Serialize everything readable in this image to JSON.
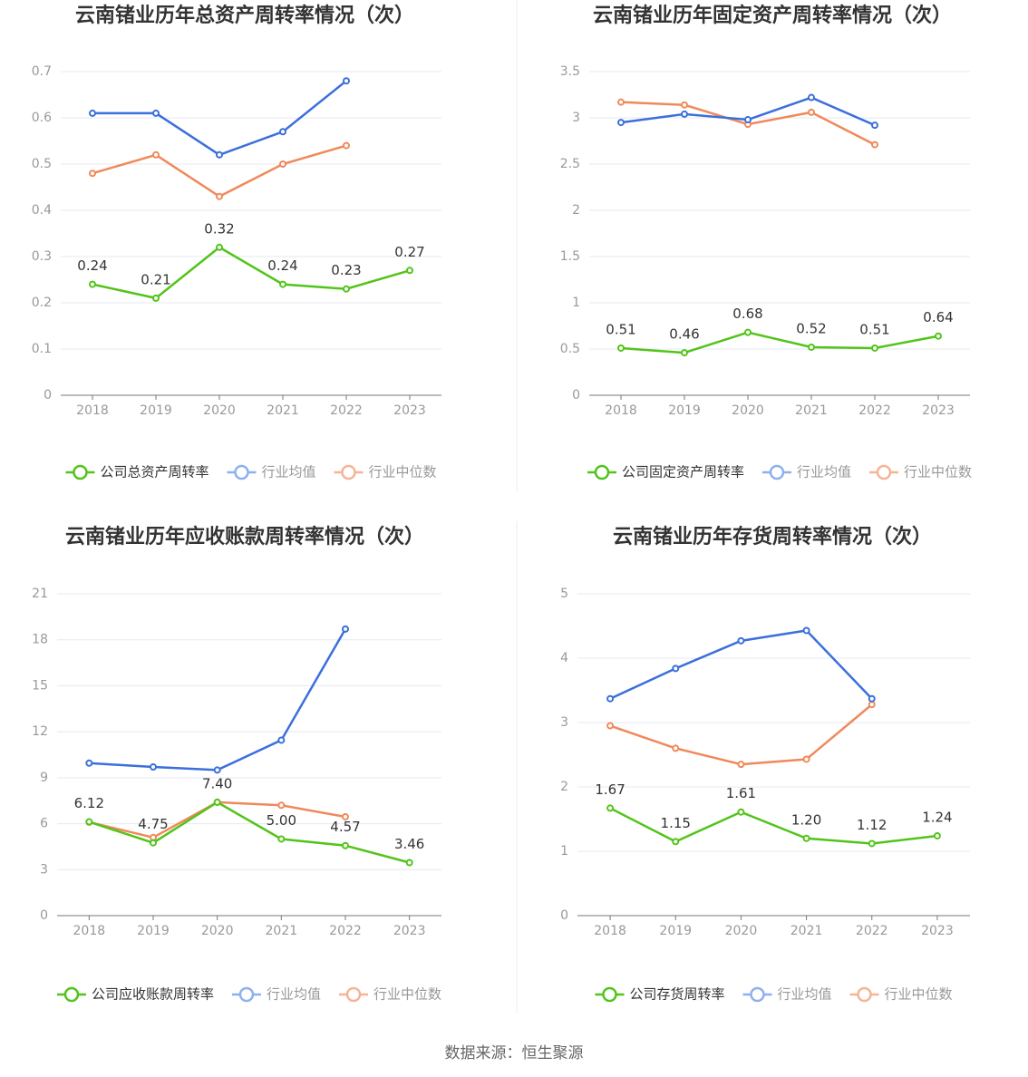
{
  "chart_data": [
    {
      "type": "line",
      "title": "云南锗业历年总资产周转率情况（次）",
      "categories": [
        "2018",
        "2019",
        "2020",
        "2021",
        "2022",
        "2023"
      ],
      "ylim": [
        0,
        0.7
      ],
      "yticks": [
        0,
        0.1,
        0.2,
        0.3,
        0.4,
        0.5,
        0.6,
        0.7
      ],
      "grid": true,
      "series": [
        {
          "name": "公司总资产周转率",
          "color": "#52c41a",
          "values": [
            0.24,
            0.21,
            0.32,
            0.24,
            0.23,
            0.27
          ],
          "value_labels": [
            "0.24",
            "0.21",
            "0.32",
            "0.24",
            "0.23",
            "0.27"
          ]
        },
        {
          "name": "行业均值",
          "color": "#3a6fdc",
          "values": [
            0.61,
            0.61,
            0.52,
            0.57,
            0.68,
            null
          ]
        },
        {
          "name": "行业中位数",
          "color": "#f0895a",
          "values": [
            0.48,
            0.52,
            0.43,
            0.5,
            0.54,
            null
          ]
        }
      ]
    },
    {
      "type": "line",
      "title": "云南锗业历年固定资产周转率情况（次）",
      "categories": [
        "2018",
        "2019",
        "2020",
        "2021",
        "2022",
        "2023"
      ],
      "ylim": [
        0,
        3.5
      ],
      "yticks": [
        0,
        0.5,
        1,
        1.5,
        2,
        2.5,
        3,
        3.5
      ],
      "grid": true,
      "series": [
        {
          "name": "公司固定资产周转率",
          "color": "#52c41a",
          "values": [
            0.51,
            0.46,
            0.68,
            0.52,
            0.51,
            0.64
          ],
          "value_labels": [
            "0.51",
            "0.46",
            "0.68",
            "0.52",
            "0.51",
            "0.64"
          ]
        },
        {
          "name": "行业均值",
          "color": "#3a6fdc",
          "values": [
            2.95,
            3.04,
            2.98,
            3.22,
            2.92,
            null
          ]
        },
        {
          "name": "行业中位数",
          "color": "#f0895a",
          "values": [
            3.17,
            3.14,
            2.93,
            3.06,
            2.71,
            null
          ]
        }
      ]
    },
    {
      "type": "line",
      "title": "云南锗业历年应收账款周转率情况（次）",
      "categories": [
        "2018",
        "2019",
        "2020",
        "2021",
        "2022",
        "2023"
      ],
      "ylim": [
        0,
        21
      ],
      "yticks": [
        0,
        3,
        6,
        9,
        12,
        15,
        18,
        21
      ],
      "grid": true,
      "series": [
        {
          "name": "公司应收账款周转率",
          "color": "#52c41a",
          "values": [
            6.12,
            4.75,
            7.4,
            5.0,
            4.57,
            3.46
          ],
          "value_labels": [
            "6.12",
            "4.75",
            "7.40",
            "5.00",
            "4.57",
            "3.46"
          ]
        },
        {
          "name": "行业均值",
          "color": "#3a6fdc",
          "values": [
            9.95,
            9.7,
            9.5,
            11.45,
            18.7,
            null
          ]
        },
        {
          "name": "行业中位数",
          "color": "#f0895a",
          "values": [
            6.1,
            5.1,
            7.4,
            7.2,
            6.45,
            null
          ]
        }
      ]
    },
    {
      "type": "line",
      "title": "云南锗业历年存货周转率情况（次）",
      "categories": [
        "2018",
        "2019",
        "2020",
        "2021",
        "2022",
        "2023"
      ],
      "ylim": [
        0,
        5
      ],
      "yticks": [
        0,
        1,
        2,
        3,
        4,
        5
      ],
      "grid": true,
      "series": [
        {
          "name": "公司存货周转率",
          "color": "#52c41a",
          "values": [
            1.67,
            1.15,
            1.61,
            1.2,
            1.12,
            1.24
          ],
          "value_labels": [
            "1.67",
            "1.15",
            "1.61",
            "1.20",
            "1.12",
            "1.24"
          ]
        },
        {
          "name": "行业均值",
          "color": "#3a6fdc",
          "values": [
            3.37,
            3.84,
            4.27,
            4.43,
            3.37,
            null
          ]
        },
        {
          "name": "行业中位数",
          "color": "#f0895a",
          "values": [
            2.95,
            2.6,
            2.35,
            2.43,
            3.28,
            null
          ]
        }
      ]
    }
  ],
  "source": "数据来源：恒生聚源"
}
